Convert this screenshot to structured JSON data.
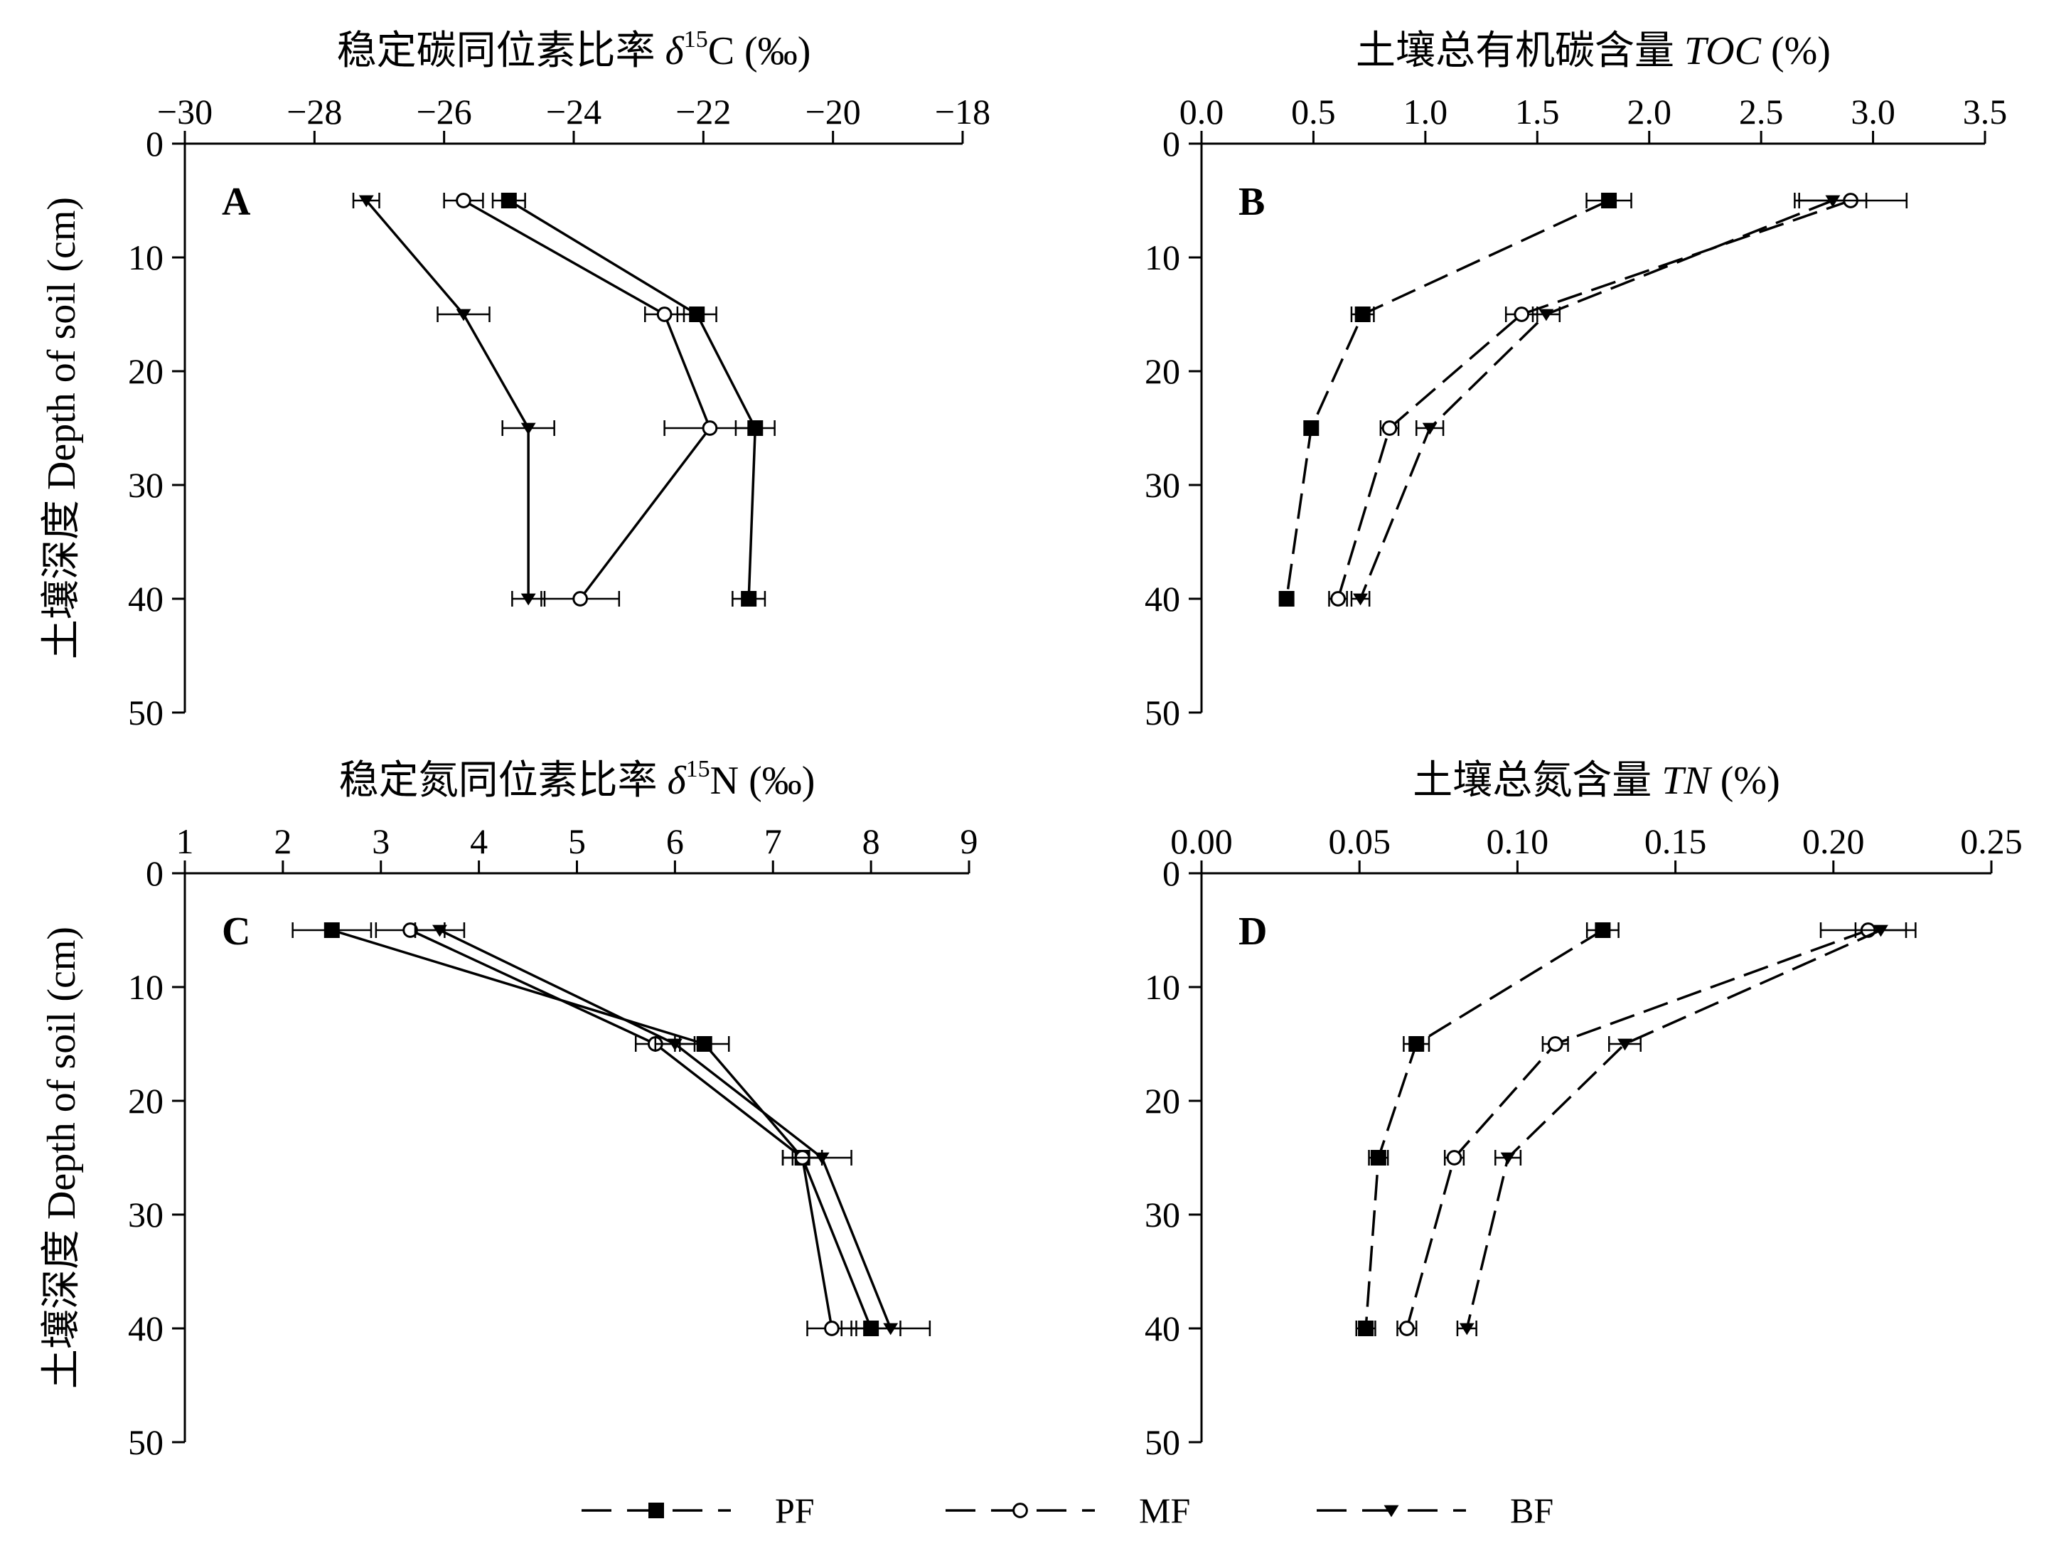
{
  "chart_data": [
    {
      "type": "line",
      "panel_label": "A",
      "title_parts": {
        "pre": "稳定碳同位素比率 ",
        "symbol": "δ",
        "sup": "15",
        "post": "C (‰)"
      },
      "x_axis_position": "top",
      "xlim": [
        -30,
        -18
      ],
      "xticks": [
        -30,
        -28,
        -26,
        -24,
        -22,
        -20,
        -18
      ],
      "xtick_labels": [
        "−30",
        "−28",
        "−26",
        "−24",
        "−22",
        "−20",
        "−18"
      ],
      "ylim": [
        0,
        50
      ],
      "yticks": [
        0,
        10,
        20,
        30,
        40,
        50
      ],
      "ylabel": "土壤深度 Depth of soil (cm)",
      "y_inverted": true,
      "line_style": "solid",
      "depth": [
        5,
        15,
        25,
        40
      ],
      "series": [
        {
          "name": "PF",
          "marker": "square",
          "values": [
            -25.0,
            -22.1,
            -21.2,
            -21.3
          ],
          "errors": [
            0.25,
            0.3,
            0.3,
            0.25
          ]
        },
        {
          "name": "MF",
          "marker": "circle",
          "values": [
            -25.7,
            -22.6,
            -21.9,
            -23.9
          ],
          "errors": [
            0.3,
            0.3,
            0.7,
            0.6
          ]
        },
        {
          "name": "BF",
          "marker": "triangle",
          "values": [
            -27.2,
            -25.7,
            -24.7,
            -24.7
          ],
          "errors": [
            0.2,
            0.4,
            0.4,
            0.25
          ]
        }
      ]
    },
    {
      "type": "line",
      "panel_label": "B",
      "title_parts": {
        "pre": "土壤总有机碳含量 ",
        "symbol": "TOC",
        "sup": "",
        "post": " (%)"
      },
      "x_axis_position": "top",
      "xlim": [
        0,
        3.5
      ],
      "xticks": [
        0,
        0.5,
        1.0,
        1.5,
        2.0,
        2.5,
        3.0,
        3.5
      ],
      "xtick_labels": [
        "0.0",
        "0.5",
        "1.0",
        "1.5",
        "2.0",
        "2.5",
        "3.0",
        "3.5"
      ],
      "ylim": [
        0,
        50
      ],
      "yticks": [
        0,
        10,
        20,
        30,
        40,
        50
      ],
      "ylabel": "",
      "y_inverted": true,
      "line_style": "dashed",
      "depth": [
        5,
        15,
        25,
        40
      ],
      "series": [
        {
          "name": "PF",
          "marker": "square",
          "values": [
            1.82,
            0.72,
            0.49,
            0.38
          ],
          "errors": [
            0.1,
            0.05,
            0.03,
            0.02
          ]
        },
        {
          "name": "MF",
          "marker": "circle",
          "values": [
            2.9,
            1.43,
            0.84,
            0.61
          ],
          "errors": [
            0.25,
            0.07,
            0.04,
            0.04
          ]
        },
        {
          "name": "BF",
          "marker": "triangle",
          "values": [
            2.82,
            1.54,
            1.02,
            0.71
          ],
          "errors": [
            0.15,
            0.06,
            0.06,
            0.04
          ]
        }
      ]
    },
    {
      "type": "line",
      "panel_label": "C",
      "title_parts": {
        "pre": "稳定氮同位素比率 ",
        "symbol": "δ",
        "sup": "15",
        "post": "N (‰)"
      },
      "x_axis_position": "top",
      "xlim": [
        1,
        9
      ],
      "xticks": [
        1,
        2,
        3,
        4,
        5,
        6,
        7,
        8,
        9
      ],
      "xtick_labels": [
        "1",
        "2",
        "3",
        "4",
        "5",
        "6",
        "7",
        "8",
        "9"
      ],
      "ylim": [
        0,
        50
      ],
      "yticks": [
        0,
        10,
        20,
        30,
        40,
        50
      ],
      "ylabel": "土壤深度 Depth of soil (cm)",
      "y_inverted": true,
      "line_style": "solid",
      "depth": [
        5,
        15,
        25,
        40
      ],
      "series": [
        {
          "name": "PF",
          "marker": "square",
          "values": [
            2.5,
            6.3,
            7.3,
            8.0
          ],
          "errors": [
            0.4,
            0.25,
            0.2,
            0.3
          ]
        },
        {
          "name": "MF",
          "marker": "circle",
          "values": [
            3.3,
            5.8,
            7.3,
            7.6
          ],
          "errors": [
            0.35,
            0.2,
            0.2,
            0.25
          ]
        },
        {
          "name": "BF",
          "marker": "triangle",
          "values": [
            3.6,
            6.0,
            7.5,
            8.2
          ],
          "errors": [
            0.25,
            0.2,
            0.3,
            0.4
          ]
        }
      ]
    },
    {
      "type": "line",
      "panel_label": "D",
      "title_parts": {
        "pre": "土壤总氮含量 ",
        "symbol": "TN",
        "sup": "",
        "post": " (%)"
      },
      "x_axis_position": "top",
      "xlim": [
        0,
        0.25
      ],
      "xticks": [
        0,
        0.05,
        0.1,
        0.15,
        0.2,
        0.25
      ],
      "xtick_labels": [
        "0.00",
        "0.05",
        "0.10",
        "0.15",
        "0.20",
        "0.25"
      ],
      "ylim": [
        0,
        50
      ],
      "yticks": [
        0,
        10,
        20,
        30,
        40,
        50
      ],
      "ylabel": "",
      "y_inverted": true,
      "line_style": "dashed",
      "depth": [
        5,
        15,
        25,
        40
      ],
      "series": [
        {
          "name": "PF",
          "marker": "square",
          "values": [
            0.127,
            0.068,
            0.056,
            0.052
          ],
          "errors": [
            0.005,
            0.004,
            0.003,
            0.003
          ]
        },
        {
          "name": "MF",
          "marker": "circle",
          "values": [
            0.211,
            0.112,
            0.08,
            0.065
          ],
          "errors": [
            0.015,
            0.004,
            0.003,
            0.003
          ]
        },
        {
          "name": "BF",
          "marker": "triangle",
          "values": [
            0.215,
            0.134,
            0.097,
            0.084
          ],
          "errors": [
            0.008,
            0.005,
            0.004,
            0.003
          ]
        }
      ]
    }
  ],
  "legend": {
    "placement": "bottom-center",
    "entries": [
      {
        "name": "PF",
        "marker": "square"
      },
      {
        "name": "MF",
        "marker": "circle"
      },
      {
        "name": "BF",
        "marker": "triangle"
      }
    ]
  }
}
